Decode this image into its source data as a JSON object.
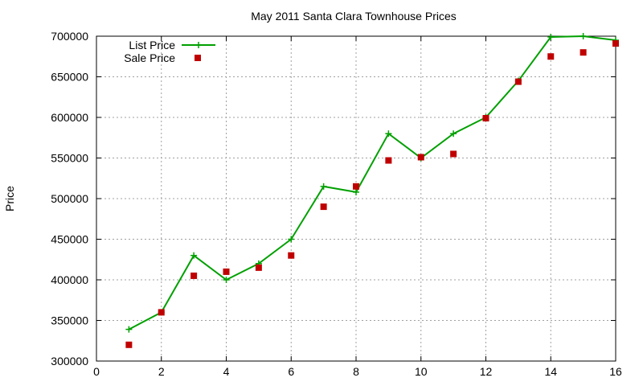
{
  "chart_data": {
    "type": "line",
    "title": "May 2011 Santa Clara Townhouse Prices",
    "xlabel": "",
    "ylabel": "Price",
    "xlim": [
      0,
      16
    ],
    "ylim": [
      300000,
      700000
    ],
    "x_ticks": [
      0,
      2,
      4,
      6,
      8,
      10,
      12,
      14,
      16
    ],
    "y_ticks": [
      300000,
      350000,
      400000,
      450000,
      500000,
      550000,
      600000,
      650000,
      700000
    ],
    "grid": true,
    "legend_position": "top-left",
    "series": [
      {
        "name": "List Price",
        "style": "line-with-plus-markers",
        "color": "#00a000",
        "x": [
          1,
          2,
          3,
          4,
          5,
          6,
          7,
          8,
          9,
          10,
          11,
          12,
          13,
          14,
          15,
          16
        ],
        "y": [
          339000,
          360000,
          430000,
          400000,
          420000,
          450000,
          515000,
          508000,
          580000,
          550000,
          580000,
          600000,
          645000,
          699000,
          700000,
          695000
        ]
      },
      {
        "name": "Sale Price",
        "style": "square-markers",
        "color": "#c00000",
        "x": [
          1,
          2,
          3,
          4,
          5,
          6,
          7,
          8,
          9,
          10,
          11,
          12,
          13,
          14,
          15,
          16
        ],
        "y": [
          320000,
          360000,
          405000,
          410000,
          415000,
          430000,
          490000,
          515000,
          547000,
          551000,
          555000,
          599000,
          644000,
          675000,
          680000,
          691000
        ]
      }
    ]
  }
}
